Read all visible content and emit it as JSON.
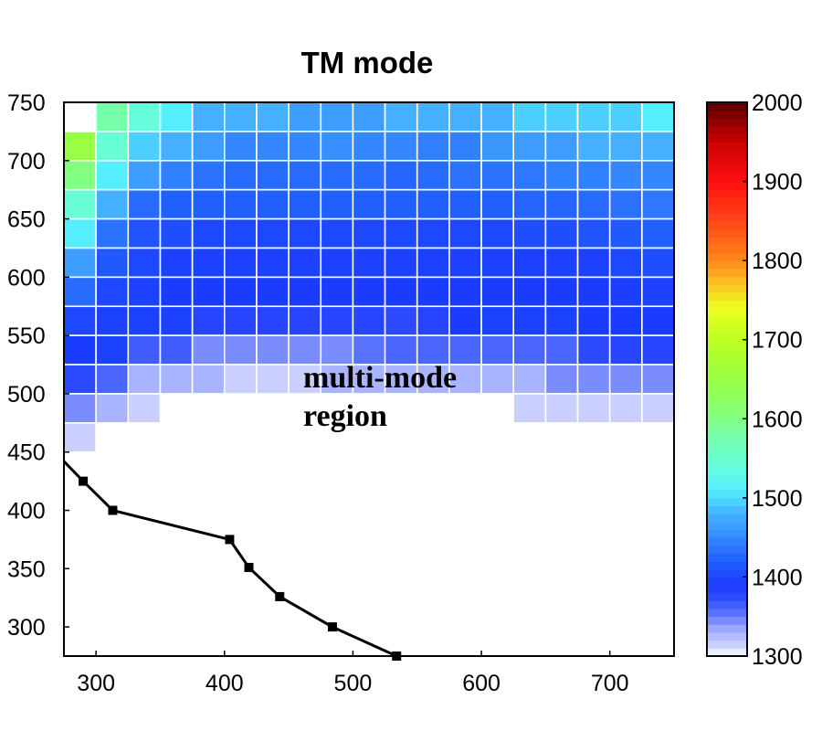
{
  "chart_data": {
    "type": "heatmap",
    "title": "TM mode",
    "xlabel": "",
    "ylabel": "",
    "xlim": [
      275,
      750
    ],
    "ylim": [
      275,
      750
    ],
    "x_ticks": [
      300,
      400,
      500,
      600,
      700
    ],
    "y_ticks": [
      750,
      700,
      650,
      600,
      550,
      500,
      450,
      400,
      350,
      300
    ],
    "cell_size": 25,
    "x_bins": [
      287.5,
      312.5,
      337.5,
      362.5,
      387.5,
      412.5,
      437.5,
      462.5,
      487.5,
      512.5,
      537.5,
      562.5,
      587.5,
      612.5,
      637.5,
      662.5,
      687.5,
      712.5,
      737.5
    ],
    "y_bins": [
      737.5,
      712.5,
      687.5,
      662.5,
      637.5,
      612.5,
      587.5,
      562.5,
      537.5,
      512.5,
      487.5,
      462.5
    ],
    "values": [
      [
        null,
        1580,
        1540,
        1510,
        1480,
        1480,
        1480,
        1465,
        1465,
        1465,
        1480,
        1480,
        1480,
        1480,
        1495,
        1495,
        1495,
        1495,
        1510
      ],
      [
        1650,
        1545,
        1495,
        1480,
        1465,
        1450,
        1450,
        1450,
        1455,
        1450,
        1450,
        1445,
        1445,
        1460,
        1465,
        1465,
        1480,
        1480,
        1480
      ],
      [
        1600,
        1510,
        1465,
        1445,
        1435,
        1430,
        1430,
        1430,
        1430,
        1430,
        1425,
        1430,
        1435,
        1435,
        1440,
        1445,
        1445,
        1450,
        1450
      ],
      [
        1545,
        1480,
        1430,
        1420,
        1420,
        1420,
        1420,
        1420,
        1420,
        1420,
        1420,
        1420,
        1420,
        1420,
        1425,
        1425,
        1430,
        1435,
        1440
      ],
      [
        1510,
        1435,
        1410,
        1405,
        1400,
        1400,
        1400,
        1400,
        1400,
        1400,
        1400,
        1400,
        1400,
        1400,
        1405,
        1405,
        1410,
        1415,
        1420
      ],
      [
        1465,
        1415,
        1400,
        1395,
        1395,
        1395,
        1395,
        1395,
        1395,
        1395,
        1395,
        1395,
        1395,
        1395,
        1395,
        1395,
        1395,
        1400,
        1405
      ],
      [
        1430,
        1400,
        1395,
        1390,
        1390,
        1390,
        1390,
        1390,
        1390,
        1390,
        1390,
        1390,
        1390,
        1390,
        1390,
        1390,
        1390,
        1392,
        1395
      ],
      [
        1400,
        1395,
        1395,
        1395,
        1380,
        1380,
        1380,
        1380,
        1380,
        1380,
        1375,
        1380,
        1390,
        1395,
        1395,
        1395,
        1390,
        1390,
        1390
      ],
      [
        1390,
        1395,
        1365,
        1365,
        1345,
        1345,
        1345,
        1345,
        1345,
        1355,
        1360,
        1360,
        1360,
        1360,
        1360,
        1360,
        1375,
        1380,
        1380
      ],
      [
        1375,
        1360,
        1330,
        1330,
        1330,
        1315,
        1315,
        1315,
        1330,
        1330,
        1330,
        1330,
        1330,
        1330,
        1330,
        1345,
        1345,
        1345,
        1345
      ],
      [
        1345,
        1330,
        1315,
        null,
        null,
        null,
        null,
        null,
        null,
        null,
        null,
        null,
        null,
        null,
        1315,
        1315,
        1315,
        1315,
        1315
      ],
      [
        1315,
        null,
        null,
        null,
        null,
        null,
        null,
        null,
        null,
        null,
        null,
        null,
        null,
        null,
        null,
        null,
        null,
        null,
        null
      ]
    ],
    "line_series": {
      "x": [
        275,
        290,
        313,
        404,
        419,
        443,
        484,
        534
      ],
      "y": [
        442,
        425,
        400,
        375,
        351,
        326,
        300,
        275
      ],
      "markers": [
        false,
        true,
        true,
        true,
        true,
        true,
        true,
        true
      ],
      "color": "#000000"
    },
    "annotation": [
      "multi-mode",
      "region"
    ],
    "colorbar": {
      "range": [
        1300,
        2000
      ],
      "ticks": [
        2000,
        1900,
        1800,
        1700,
        1600,
        1500,
        1400,
        1300
      ],
      "stops": [
        [
          1300,
          "#ffffff"
        ],
        [
          1310,
          "#d4d8ff"
        ],
        [
          1330,
          "#a8b4ff"
        ],
        [
          1345,
          "#7a8cff"
        ],
        [
          1360,
          "#4a66ff"
        ],
        [
          1375,
          "#2e4aff"
        ],
        [
          1390,
          "#1a3cff"
        ],
        [
          1400,
          "#1e48ff"
        ],
        [
          1420,
          "#2060ff"
        ],
        [
          1440,
          "#2e78ff"
        ],
        [
          1460,
          "#3a98ff"
        ],
        [
          1480,
          "#44b0ff"
        ],
        [
          1495,
          "#4cd0ff"
        ],
        [
          1510,
          "#55eeff"
        ],
        [
          1540,
          "#66ffdd"
        ],
        [
          1580,
          "#77ffaa"
        ],
        [
          1600,
          "#80ff80"
        ],
        [
          1650,
          "#99ff44"
        ],
        [
          1700,
          "#bbff22"
        ],
        [
          1740,
          "#eeff22"
        ],
        [
          1780,
          "#ffb020"
        ],
        [
          1800,
          "#ff8818"
        ],
        [
          1850,
          "#ff4818"
        ],
        [
          1900,
          "#ff1010"
        ],
        [
          1950,
          "#cc0000"
        ],
        [
          2000,
          "#5a0000"
        ]
      ]
    }
  }
}
